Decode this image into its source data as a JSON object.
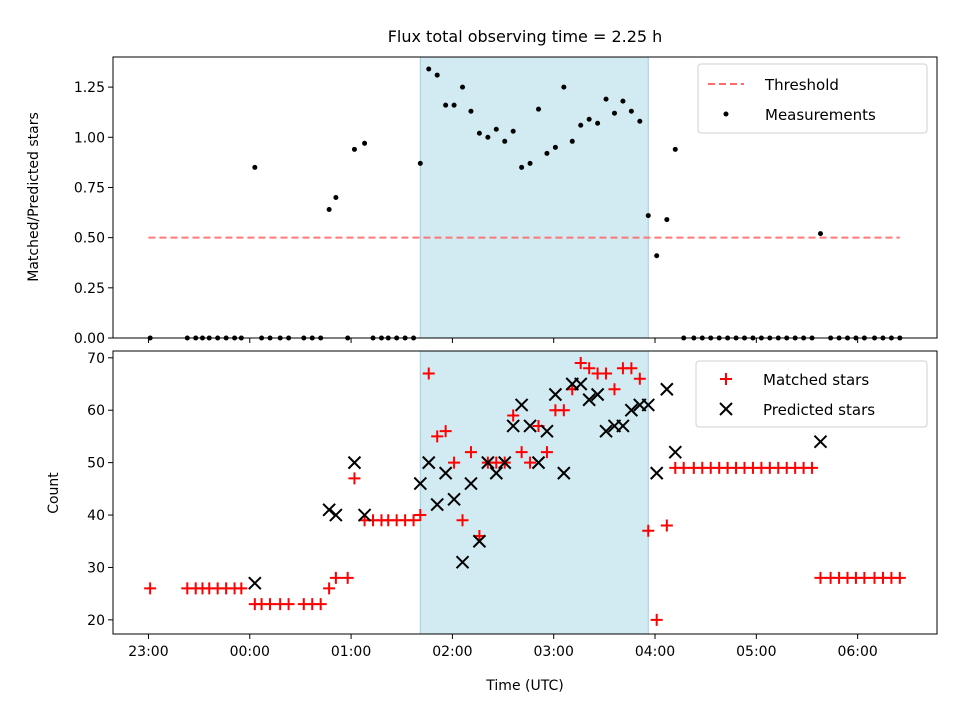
{
  "figure": {
    "title": "Flux total observing time = 2.25 h",
    "xlabel": "Time (UTC)"
  },
  "colors": {
    "threshold": "#ff6b6b",
    "measurement": "#000000",
    "matched": "#ff0000",
    "predicted": "#000000",
    "highlight": "#add8e6"
  },
  "chart_data": [
    {
      "type": "scatter",
      "ylabel": "Matched/Predicted stars",
      "xlim": [
        "22:39",
        "06:47"
      ],
      "ylim": [
        0,
        1.4
      ],
      "yticks": [
        0.0,
        0.25,
        0.5,
        0.75,
        1.0,
        1.25
      ],
      "ytick_labels": [
        "0.00",
        "0.25",
        "0.50",
        "0.75",
        "1.00",
        "1.25"
      ],
      "highlight_span": [
        "01:41",
        "03:56"
      ],
      "legend": {
        "position": "top-right",
        "entries": [
          "Threshold",
          "Measurements"
        ]
      },
      "threshold": {
        "name": "Threshold",
        "y": 0.5,
        "x_from": "23:00",
        "x_to": "06:25"
      },
      "series": [
        {
          "name": "Measurements",
          "x": [
            "23:01",
            "23:23",
            "23:28",
            "23:32",
            "23:36",
            "23:41",
            "23:46",
            "23:51",
            "23:55",
            "00:03",
            "00:07",
            "00:12",
            "00:18",
            "00:23",
            "00:32",
            "00:37",
            "00:42",
            "00:47",
            "00:51",
            "00:58",
            "01:02",
            "01:08",
            "01:13",
            "01:18",
            "01:22",
            "01:27",
            "01:32",
            "01:37",
            "01:41",
            "01:46",
            "01:51",
            "01:56",
            "02:01",
            "02:06",
            "02:11",
            "02:16",
            "02:21",
            "02:26",
            "02:31",
            "02:36",
            "02:41",
            "02:46",
            "02:51",
            "02:56",
            "03:01",
            "03:06",
            "03:11",
            "03:16",
            "03:21",
            "03:26",
            "03:31",
            "03:36",
            "03:41",
            "03:46",
            "03:51",
            "03:56",
            "04:01",
            "04:07",
            "04:12",
            "04:17",
            "04:23",
            "04:28",
            "04:33",
            "04:38",
            "04:43",
            "04:48",
            "04:53",
            "04:58",
            "05:03",
            "05:08",
            "05:13",
            "05:18",
            "05:23",
            "05:28",
            "05:33",
            "05:38",
            "05:44",
            "05:49",
            "05:54",
            "05:59",
            "06:04",
            "06:10",
            "06:15",
            "06:20",
            "06:25"
          ],
          "y": [
            0.0,
            0.0,
            0.0,
            0.0,
            0.0,
            0.0,
            0.0,
            0.0,
            0.0,
            0.85,
            0.0,
            0.0,
            0.0,
            0.0,
            0.0,
            0.0,
            0.0,
            0.64,
            0.7,
            0.0,
            0.94,
            0.97,
            0.0,
            0.0,
            0.0,
            0.0,
            0.0,
            0.0,
            0.87,
            1.34,
            1.31,
            1.16,
            1.16,
            1.25,
            1.13,
            1.02,
            1.0,
            1.04,
            0.98,
            1.03,
            0.85,
            0.87,
            1.14,
            0.92,
            0.95,
            1.25,
            0.98,
            1.06,
            1.09,
            1.07,
            1.19,
            1.12,
            1.18,
            1.13,
            1.08,
            0.61,
            0.41,
            0.59,
            0.94,
            0.0,
            0.0,
            0.0,
            0.0,
            0.0,
            0.0,
            0.0,
            0.0,
            0.0,
            0.0,
            0.0,
            0.0,
            0.0,
            0.0,
            0.0,
            0.0,
            0.52,
            0.0,
            0.0,
            0.0,
            0.0,
            0.0,
            0.0,
            0.0,
            0.0,
            0.0
          ]
        }
      ]
    },
    {
      "type": "scatter",
      "ylabel": "Count",
      "xlim": [
        "22:39",
        "06:47"
      ],
      "ylim": [
        17.3,
        71.3
      ],
      "yticks": [
        20,
        30,
        40,
        50,
        60,
        70
      ],
      "ytick_labels": [
        "20",
        "30",
        "40",
        "50",
        "60",
        "70"
      ],
      "xticks": [
        "23:00",
        "00:00",
        "01:00",
        "02:00",
        "03:00",
        "04:00",
        "05:00",
        "06:00"
      ],
      "xtick_labels": [
        "23:00",
        "00:00",
        "01:00",
        "02:00",
        "03:00",
        "04:00",
        "05:00",
        "06:00"
      ],
      "highlight_span": [
        "01:41",
        "03:56"
      ],
      "legend": {
        "position": "top-right",
        "entries": [
          "Matched stars",
          "Predicted stars"
        ]
      },
      "series": [
        {
          "name": "Matched stars",
          "x": [
            "23:01",
            "23:23",
            "23:28",
            "23:32",
            "23:36",
            "23:41",
            "23:46",
            "23:51",
            "23:55",
            "00:03",
            "00:07",
            "00:12",
            "00:18",
            "00:23",
            "00:32",
            "00:37",
            "00:42",
            "00:47",
            "00:51",
            "00:58",
            "01:02",
            "01:08",
            "01:13",
            "01:18",
            "01:22",
            "01:27",
            "01:32",
            "01:37",
            "01:41",
            "01:46",
            "01:51",
            "01:56",
            "02:01",
            "02:06",
            "02:11",
            "02:16",
            "02:21",
            "02:26",
            "02:31",
            "02:36",
            "02:41",
            "02:46",
            "02:51",
            "02:56",
            "03:01",
            "03:06",
            "03:11",
            "03:16",
            "03:21",
            "03:26",
            "03:31",
            "03:36",
            "03:41",
            "03:46",
            "03:51",
            "03:56",
            "04:01",
            "04:07",
            "04:12",
            "04:17",
            "04:23",
            "04:28",
            "04:33",
            "04:38",
            "04:43",
            "04:48",
            "04:53",
            "04:58",
            "05:03",
            "05:08",
            "05:13",
            "05:18",
            "05:23",
            "05:28",
            "05:33",
            "05:38",
            "05:44",
            "05:49",
            "05:54",
            "05:59",
            "06:04",
            "06:10",
            "06:15",
            "06:20",
            "06:25"
          ],
          "y": [
            26,
            26,
            26,
            26,
            26,
            26,
            26,
            26,
            26,
            23,
            23,
            23,
            23,
            23,
            23,
            23,
            23,
            26,
            28,
            28,
            47,
            39,
            39,
            39,
            39,
            39,
            39,
            39,
            40,
            67,
            55,
            56,
            50,
            39,
            52,
            36,
            50,
            50,
            50,
            59,
            52,
            50,
            57,
            52,
            60,
            60,
            64,
            69,
            68,
            67,
            67,
            64,
            68,
            68,
            66,
            37,
            20,
            38,
            49,
            49,
            49,
            49,
            49,
            49,
            49,
            49,
            49,
            49,
            49,
            49,
            49,
            49,
            49,
            49,
            49,
            28,
            28,
            28,
            28,
            28,
            28,
            28,
            28,
            28,
            28
          ]
        },
        {
          "name": "Predicted stars",
          "x": [
            "00:03",
            "00:47",
            "00:51",
            "01:02",
            "01:08",
            "01:41",
            "01:46",
            "01:51",
            "01:56",
            "02:01",
            "02:06",
            "02:11",
            "02:16",
            "02:21",
            "02:26",
            "02:31",
            "02:36",
            "02:41",
            "02:46",
            "02:51",
            "02:56",
            "03:01",
            "03:06",
            "03:11",
            "03:16",
            "03:21",
            "03:26",
            "03:31",
            "03:36",
            "03:41",
            "03:46",
            "03:51",
            "03:56",
            "04:01",
            "04:07",
            "04:12",
            "05:38"
          ],
          "y": [
            27,
            41,
            40,
            50,
            40,
            46,
            50,
            42,
            48,
            43,
            31,
            46,
            35,
            50,
            48,
            50,
            57,
            61,
            57,
            50,
            56,
            63,
            48,
            65,
            65,
            62,
            63,
            56,
            57,
            57,
            60,
            61,
            61,
            48,
            64,
            52,
            54
          ]
        }
      ]
    }
  ]
}
